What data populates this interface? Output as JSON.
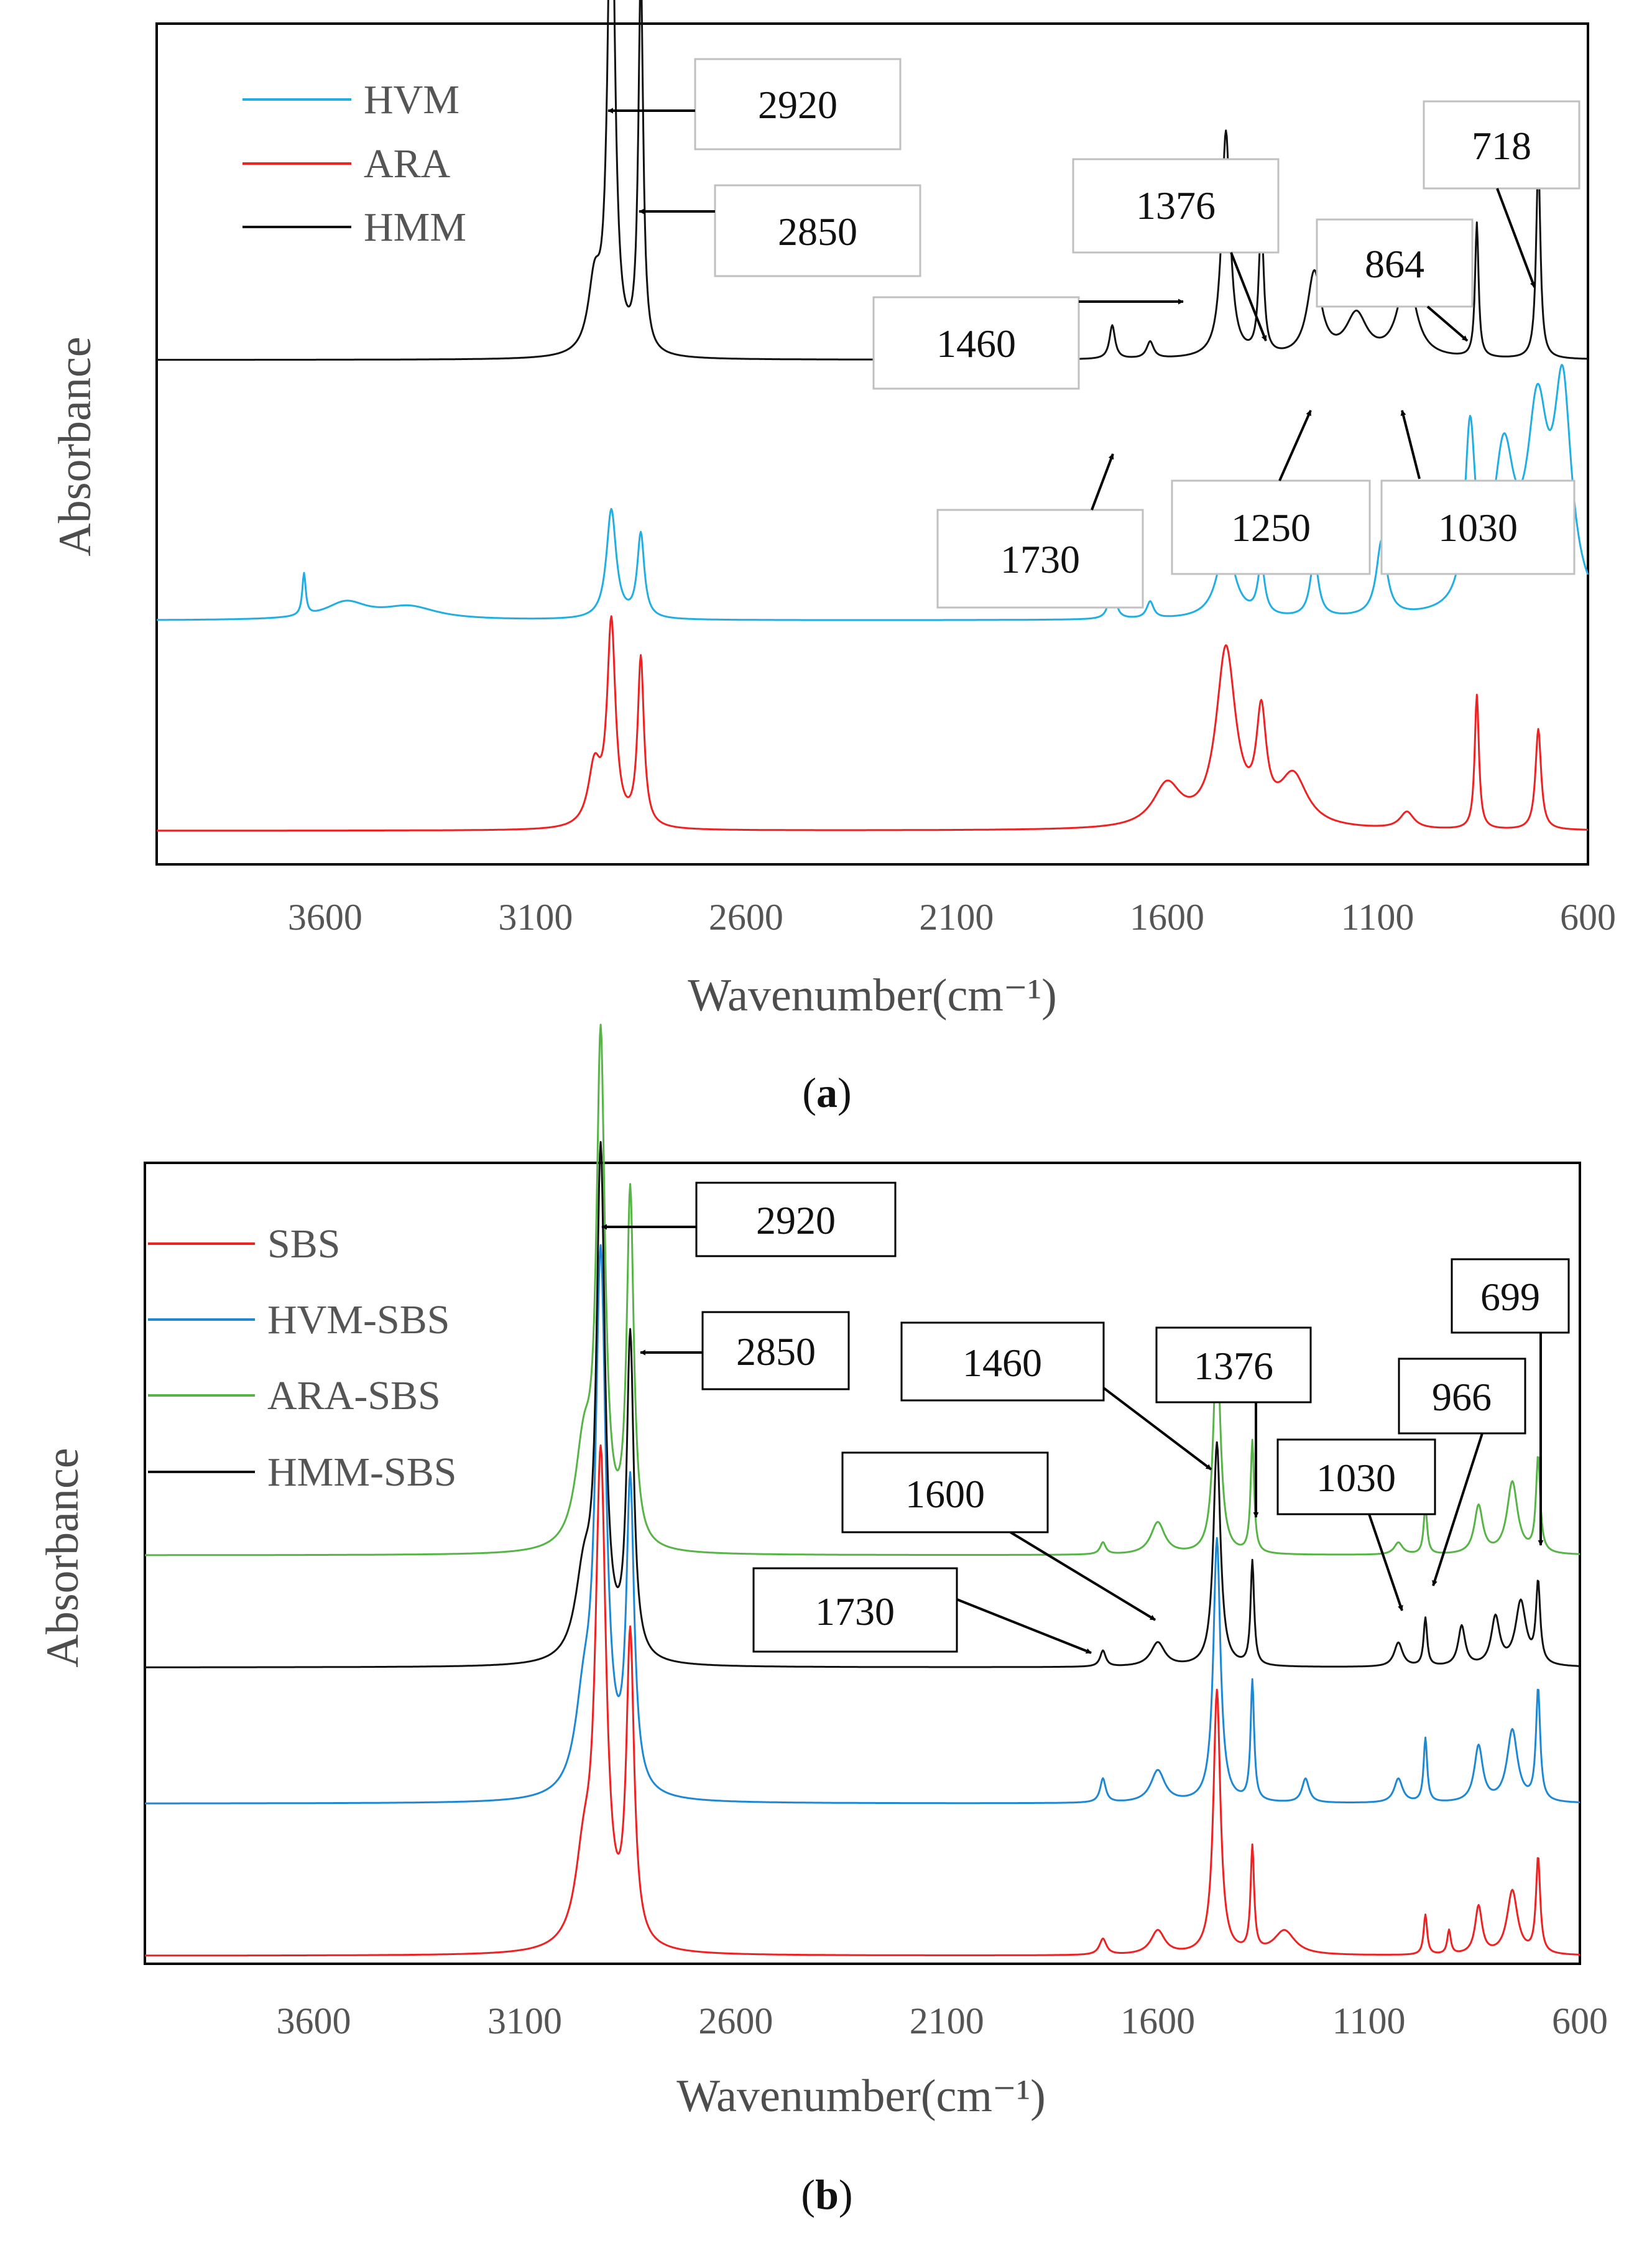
{
  "chart_data": [
    {
      "type": "line",
      "panel": "a",
      "caption_letter": "a",
      "xlabel": "Wavenumber(cm⁻¹)",
      "ylabel": "Absorbance",
      "xlim": [
        4000,
        600
      ],
      "xticks": [
        3600,
        3100,
        2600,
        2100,
        1600,
        1100,
        600
      ],
      "xtick_labels": [
        "3600",
        "3100",
        "2600",
        "2100",
        "1600",
        "1100",
        "600"
      ],
      "ylim": [
        0,
        1
      ],
      "legend": [
        "HVM",
        "ARA",
        "HMM"
      ],
      "series": [
        {
          "name": "HVM",
          "color": "#21aee3",
          "offset": 0.29,
          "peaks": [
            [
              3650,
              0.05,
              5
            ],
            [
              3550,
              0.02,
              60
            ],
            [
              3400,
              0.015,
              80
            ],
            [
              2920,
              0.13,
              14
            ],
            [
              2850,
              0.1,
              10
            ],
            [
              1730,
              0.05,
              8
            ],
            [
              1640,
              0.02,
              10
            ],
            [
              1460,
              0.09,
              25
            ],
            [
              1376,
              0.06,
              10
            ],
            [
              1250,
              0.07,
              12
            ],
            [
              1090,
              0.09,
              15
            ],
            [
              880,
              0.21,
              15
            ],
            [
              800,
              0.18,
              30
            ],
            [
              720,
              0.22,
              30
            ],
            [
              660,
              0.25,
              25
            ]
          ]
        },
        {
          "name": "ARA",
          "color": "#ee2222",
          "offset": 0.04,
          "peaks": [
            [
              2960,
              0.07,
              18
            ],
            [
              2920,
              0.24,
              12
            ],
            [
              2850,
              0.2,
              9
            ],
            [
              1600,
              0.05,
              40
            ],
            [
              1460,
              0.21,
              28
            ],
            [
              1376,
              0.12,
              14
            ],
            [
              1300,
              0.06,
              40
            ],
            [
              1030,
              0.02,
              20
            ],
            [
              864,
              0.16,
              6
            ],
            [
              718,
              0.12,
              8
            ]
          ]
        },
        {
          "name": "HMM",
          "color": "#111111",
          "offset": 0.6,
          "peaks": [
            [
              2960,
              0.08,
              18
            ],
            [
              2920,
              0.62,
              10
            ],
            [
              2850,
              0.45,
              7
            ],
            [
              1730,
              0.04,
              8
            ],
            [
              1640,
              0.02,
              10
            ],
            [
              1460,
              0.27,
              12
            ],
            [
              1376,
              0.16,
              7
            ],
            [
              1250,
              0.1,
              20
            ],
            [
              1150,
              0.05,
              30
            ],
            [
              1030,
              0.1,
              25
            ],
            [
              864,
              0.16,
              5
            ],
            [
              718,
              0.24,
              6
            ]
          ]
        }
      ],
      "annotations": [
        "2920",
        "2850",
        "1376",
        "718",
        "864",
        "1460",
        "1730",
        "1250",
        "1030"
      ]
    },
    {
      "type": "line",
      "panel": "b",
      "caption_letter": "b",
      "xlabel": "Wavenumber(cm⁻¹)",
      "ylabel": "Absorbance",
      "xlim": [
        4000,
        600
      ],
      "xticks": [
        3600,
        3100,
        2600,
        2100,
        1600,
        1100,
        600
      ],
      "xtick_labels": [
        "3600",
        "3100",
        "2600",
        "2100",
        "1600",
        "1100",
        "600"
      ],
      "ylim": [
        0,
        1
      ],
      "legend": [
        "SBS",
        "HVM-SBS",
        "ARA-SBS",
        "HMM-SBS"
      ],
      "series": [
        {
          "name": "SBS",
          "color": "#ee2222",
          "offset": 0.01,
          "peaks": [
            [
              2960,
              0.1,
              25
            ],
            [
              2920,
              0.6,
              15
            ],
            [
              2850,
              0.38,
              11
            ],
            [
              1730,
              0.02,
              10
            ],
            [
              1600,
              0.03,
              20
            ],
            [
              1460,
              0.33,
              10
            ],
            [
              1376,
              0.13,
              5
            ],
            [
              1300,
              0.03,
              30
            ],
            [
              966,
              0.05,
              5
            ],
            [
              910,
              0.03,
              5
            ],
            [
              840,
              0.06,
              10
            ],
            [
              760,
              0.08,
              15
            ],
            [
              699,
              0.12,
              6
            ]
          ]
        },
        {
          "name": "HVM-SBS",
          "color": "#1e88d4",
          "offset": 0.2,
          "peaks": [
            [
              2960,
              0.1,
              25
            ],
            [
              2920,
              0.66,
              15
            ],
            [
              2850,
              0.38,
              11
            ],
            [
              1730,
              0.03,
              8
            ],
            [
              1600,
              0.04,
              20
            ],
            [
              1460,
              0.33,
              10
            ],
            [
              1376,
              0.15,
              5
            ],
            [
              1250,
              0.03,
              10
            ],
            [
              1030,
              0.03,
              12
            ],
            [
              966,
              0.08,
              5
            ],
            [
              840,
              0.07,
              12
            ],
            [
              760,
              0.09,
              15
            ],
            [
              699,
              0.14,
              6
            ]
          ]
        },
        {
          "name": "ARA-SBS",
          "color": "#57b447",
          "offset": 0.51,
          "peaks": [
            [
              2960,
              0.12,
              25
            ],
            [
              2920,
              0.62,
              12
            ],
            [
              2850,
              0.44,
              10
            ],
            [
              1730,
              0.015,
              8
            ],
            [
              1600,
              0.04,
              20
            ],
            [
              1460,
              0.27,
              10
            ],
            [
              1376,
              0.14,
              5
            ],
            [
              1030,
              0.015,
              12
            ],
            [
              966,
              0.06,
              5
            ],
            [
              840,
              0.06,
              12
            ],
            [
              760,
              0.09,
              15
            ],
            [
              699,
              0.12,
              6
            ]
          ]
        },
        {
          "name": "HMM-SBS",
          "color": "#111111",
          "offset": 0.37,
          "peaks": [
            [
              2960,
              0.1,
              25
            ],
            [
              2920,
              0.62,
              12
            ],
            [
              2850,
              0.4,
              10
            ],
            [
              1730,
              0.02,
              8
            ],
            [
              1600,
              0.03,
              20
            ],
            [
              1460,
              0.28,
              10
            ],
            [
              1376,
              0.13,
              5
            ],
            [
              1030,
              0.03,
              12
            ],
            [
              966,
              0.06,
              5
            ],
            [
              880,
              0.05,
              10
            ],
            [
              800,
              0.06,
              12
            ],
            [
              740,
              0.08,
              15
            ],
            [
              699,
              0.1,
              6
            ]
          ]
        }
      ],
      "annotations": [
        "2920",
        "2850",
        "1460",
        "1376",
        "699",
        "966",
        "1030",
        "1600",
        "1730"
      ]
    }
  ]
}
